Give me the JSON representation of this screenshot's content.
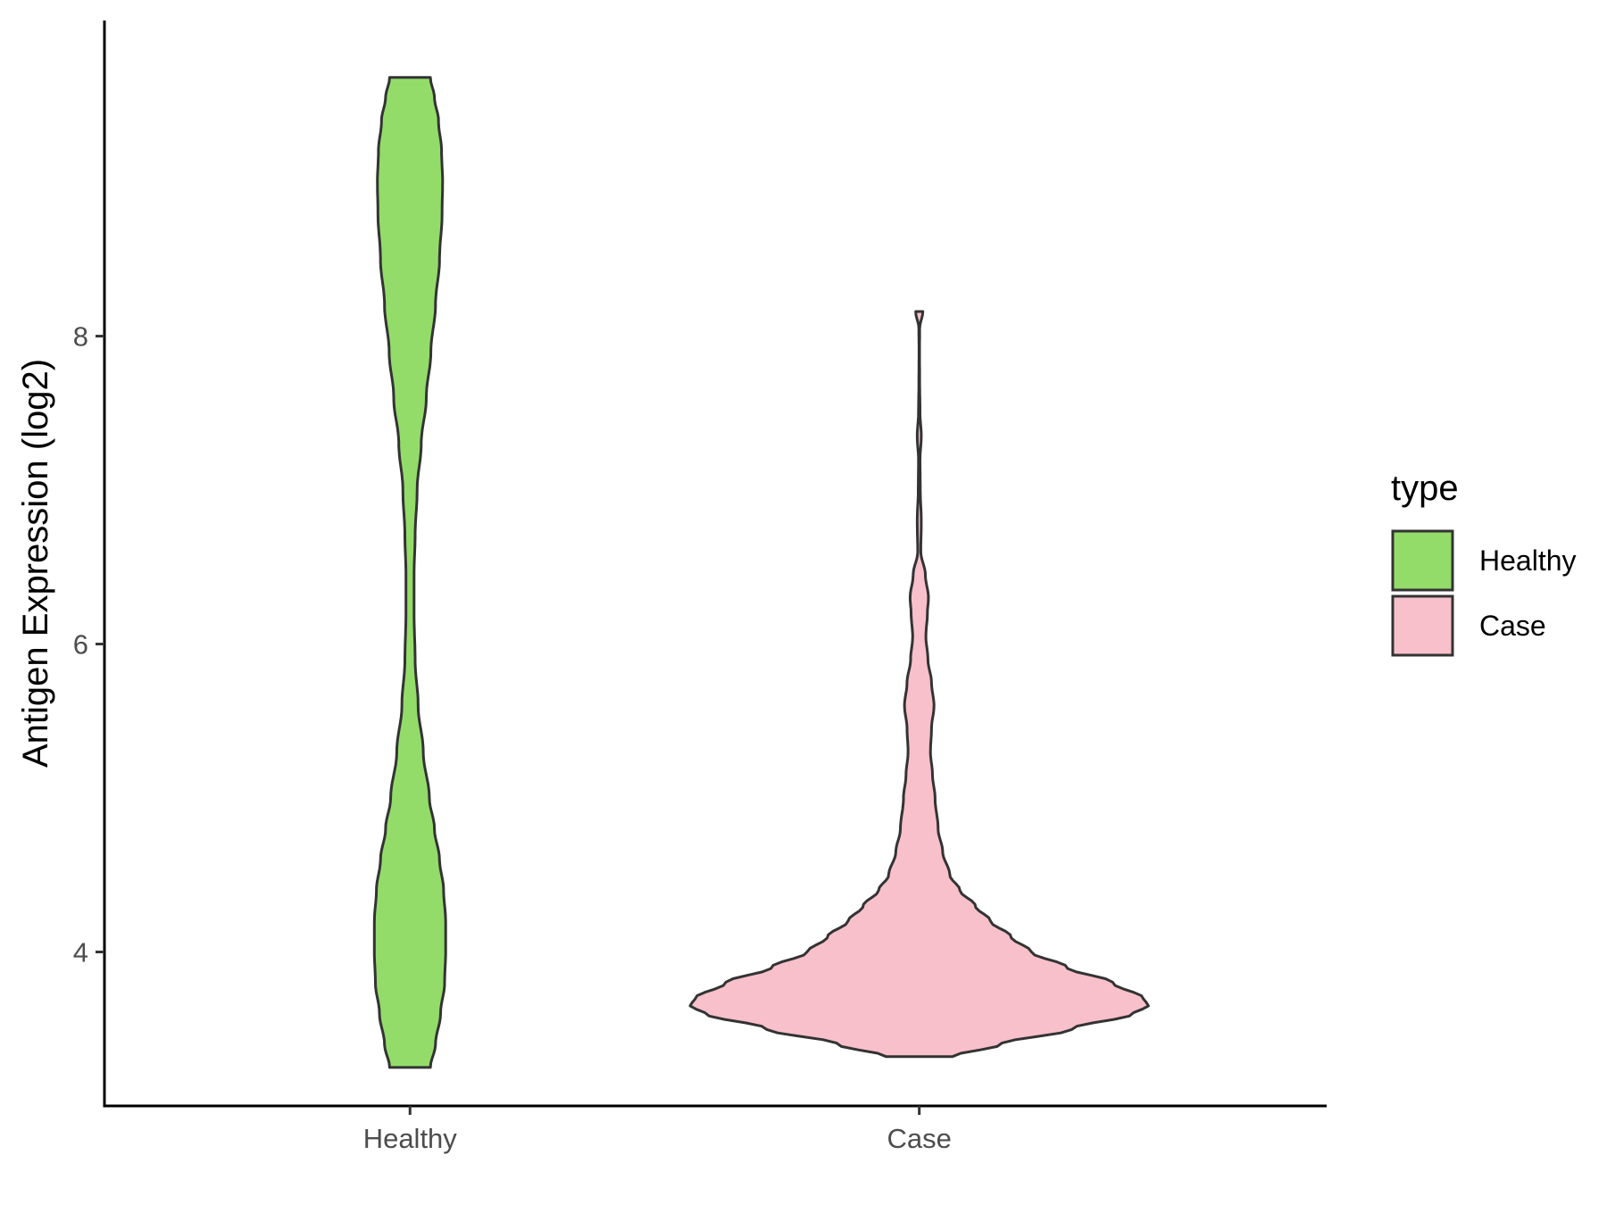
{
  "chart_data": {
    "type": "violin",
    "ylabel": "Antigen Expression (log2)",
    "xlabel": "",
    "categories": [
      "Healthy",
      "Case"
    ],
    "ylim": [
      3.0,
      10.05
    ],
    "yticks": [
      4,
      6,
      8
    ],
    "grid": false,
    "legend": {
      "title": "type",
      "position": "right",
      "entries": [
        {
          "label": "Healthy",
          "color": "#93dc6a"
        },
        {
          "label": "Case",
          "color": "#f8c0cb"
        }
      ]
    },
    "series": [
      {
        "name": "Healthy",
        "color": "#93dc6a",
        "range": [
          3.25,
          9.68
        ],
        "max_half_width": 0.1,
        "density": [
          [
            3.25,
            0.04
          ],
          [
            3.4,
            0.05
          ],
          [
            3.6,
            0.06
          ],
          [
            3.8,
            0.068
          ],
          [
            4.0,
            0.07
          ],
          [
            4.2,
            0.07
          ],
          [
            4.4,
            0.066
          ],
          [
            4.6,
            0.058
          ],
          [
            4.8,
            0.048
          ],
          [
            5.0,
            0.038
          ],
          [
            5.3,
            0.026
          ],
          [
            5.6,
            0.016
          ],
          [
            5.9,
            0.01
          ],
          [
            6.2,
            0.008
          ],
          [
            6.45,
            0.008
          ],
          [
            6.7,
            0.01
          ],
          [
            7.0,
            0.014
          ],
          [
            7.3,
            0.022
          ],
          [
            7.6,
            0.032
          ],
          [
            7.9,
            0.041
          ],
          [
            8.2,
            0.05
          ],
          [
            8.5,
            0.058
          ],
          [
            8.8,
            0.063
          ],
          [
            9.0,
            0.064
          ],
          [
            9.2,
            0.062
          ],
          [
            9.4,
            0.056
          ],
          [
            9.55,
            0.048
          ],
          [
            9.68,
            0.04
          ]
        ]
      },
      {
        "name": "Case",
        "color": "#f8c0cb",
        "range": [
          3.32,
          8.16
        ],
        "max_half_width": 0.45,
        "density": [
          [
            3.32,
            0.065
          ],
          [
            3.4,
            0.16
          ],
          [
            3.5,
            0.3
          ],
          [
            3.6,
            0.42
          ],
          [
            3.65,
            0.45
          ],
          [
            3.7,
            0.44
          ],
          [
            3.8,
            0.38
          ],
          [
            3.9,
            0.29
          ],
          [
            4.0,
            0.22
          ],
          [
            4.1,
            0.18
          ],
          [
            4.2,
            0.14
          ],
          [
            4.3,
            0.11
          ],
          [
            4.4,
            0.08
          ],
          [
            4.5,
            0.06
          ],
          [
            4.65,
            0.046
          ],
          [
            4.8,
            0.037
          ],
          [
            5.0,
            0.031
          ],
          [
            5.15,
            0.026
          ],
          [
            5.3,
            0.022
          ],
          [
            5.45,
            0.024
          ],
          [
            5.6,
            0.029
          ],
          [
            5.75,
            0.024
          ],
          [
            5.9,
            0.017
          ],
          [
            6.05,
            0.013
          ],
          [
            6.2,
            0.016
          ],
          [
            6.3,
            0.018
          ],
          [
            6.45,
            0.012
          ],
          [
            6.6,
            0.003
          ],
          [
            6.8,
            0.004
          ],
          [
            7.0,
            0.002
          ],
          [
            7.2,
            0.0015
          ],
          [
            7.35,
            0.004
          ],
          [
            7.5,
            0.0015
          ],
          [
            7.7,
            0.0008
          ],
          [
            7.9,
            0.0005
          ],
          [
            8.05,
            0.0008
          ],
          [
            8.16,
            0.007
          ]
        ]
      }
    ]
  }
}
